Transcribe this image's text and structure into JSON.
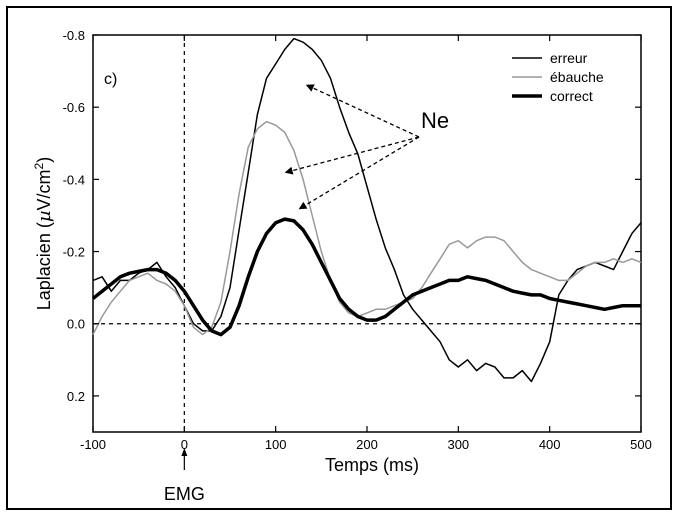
{
  "chart_data": {
    "type": "line",
    "panel_label": "c)",
    "xlabel": "Temps (ms)",
    "ylabel_main": "Laplacien (",
    "ylabel_mu": "µ",
    "ylabel_unit": "V/cm",
    "ylabel_sup": "2",
    "ylabel_close": ")",
    "xlim": [
      -100,
      500
    ],
    "ylim": [
      0.3,
      -0.8
    ],
    "y_inverted": true,
    "x_ticks": [
      -100,
      0,
      100,
      200,
      300,
      400,
      500
    ],
    "x_tick_labels": [
      "-100",
      "0",
      "100",
      "200",
      "300",
      "400",
      "500"
    ],
    "y_ticks": [
      -0.8,
      -0.6,
      -0.4,
      -0.2,
      0.0,
      0.2
    ],
    "y_tick_labels": [
      "-0.8",
      "-0.6",
      "-0.4",
      "-0.2",
      "0.0",
      "0.2"
    ],
    "grid": false,
    "legend_position": "top-right",
    "annotations": {
      "ne_label": "Ne",
      "emg_label": "EMG"
    },
    "series": [
      {
        "name": "erreur",
        "color": "#000000",
        "width": "thin",
        "x": [
          -100,
          -90,
          -80,
          -70,
          -60,
          -50,
          -40,
          -30,
          -20,
          -10,
          0,
          10,
          20,
          30,
          40,
          50,
          60,
          70,
          80,
          90,
          100,
          110,
          120,
          130,
          140,
          150,
          160,
          170,
          180,
          190,
          200,
          210,
          220,
          230,
          240,
          250,
          260,
          270,
          280,
          290,
          300,
          310,
          320,
          330,
          340,
          350,
          360,
          370,
          380,
          390,
          400,
          410,
          420,
          430,
          440,
          450,
          460,
          470,
          480,
          490,
          500
        ],
        "y": [
          -0.12,
          -0.13,
          -0.09,
          -0.12,
          -0.12,
          -0.14,
          -0.15,
          -0.17,
          -0.13,
          -0.1,
          -0.05,
          0.0,
          0.02,
          0.02,
          -0.02,
          -0.1,
          -0.26,
          -0.42,
          -0.58,
          -0.68,
          -0.72,
          -0.76,
          -0.79,
          -0.78,
          -0.76,
          -0.73,
          -0.68,
          -0.6,
          -0.53,
          -0.47,
          -0.38,
          -0.29,
          -0.21,
          -0.15,
          -0.08,
          -0.04,
          -0.01,
          0.02,
          0.05,
          0.1,
          0.12,
          0.1,
          0.13,
          0.11,
          0.12,
          0.15,
          0.15,
          0.13,
          0.16,
          0.11,
          0.05,
          -0.08,
          -0.12,
          -0.15,
          -0.16,
          -0.17,
          -0.16,
          -0.15,
          -0.2,
          -0.25,
          -0.28
        ]
      },
      {
        "name": "ébauche",
        "color": "#999999",
        "width": "thin",
        "x": [
          -100,
          -90,
          -80,
          -70,
          -60,
          -50,
          -40,
          -30,
          -20,
          -10,
          0,
          10,
          20,
          30,
          40,
          50,
          60,
          70,
          80,
          90,
          100,
          110,
          120,
          130,
          140,
          150,
          160,
          170,
          180,
          190,
          200,
          210,
          220,
          230,
          240,
          250,
          260,
          270,
          280,
          290,
          300,
          310,
          320,
          330,
          340,
          350,
          360,
          370,
          380,
          390,
          400,
          410,
          420,
          430,
          440,
          450,
          460,
          470,
          480,
          490,
          500
        ],
        "y": [
          0.03,
          -0.02,
          -0.06,
          -0.09,
          -0.12,
          -0.13,
          -0.14,
          -0.12,
          -0.11,
          -0.09,
          -0.05,
          0.01,
          0.03,
          0.01,
          -0.06,
          -0.2,
          -0.36,
          -0.49,
          -0.54,
          -0.56,
          -0.55,
          -0.53,
          -0.48,
          -0.4,
          -0.3,
          -0.2,
          -0.12,
          -0.06,
          -0.03,
          -0.02,
          -0.03,
          -0.04,
          -0.04,
          -0.05,
          -0.06,
          -0.07,
          -0.1,
          -0.14,
          -0.18,
          -0.22,
          -0.23,
          -0.21,
          -0.23,
          -0.24,
          -0.24,
          -0.23,
          -0.2,
          -0.17,
          -0.15,
          -0.14,
          -0.13,
          -0.12,
          -0.12,
          -0.14,
          -0.16,
          -0.17,
          -0.17,
          -0.18,
          -0.17,
          -0.18,
          -0.17
        ]
      },
      {
        "name": "correct",
        "color": "#000000",
        "width": "thick",
        "x": [
          -100,
          -90,
          -80,
          -70,
          -60,
          -50,
          -40,
          -30,
          -20,
          -10,
          0,
          10,
          20,
          30,
          40,
          50,
          60,
          70,
          80,
          90,
          100,
          110,
          120,
          130,
          140,
          150,
          160,
          170,
          180,
          190,
          200,
          210,
          220,
          230,
          240,
          250,
          260,
          270,
          280,
          290,
          300,
          310,
          320,
          330,
          340,
          350,
          360,
          370,
          380,
          390,
          400,
          410,
          420,
          430,
          440,
          450,
          460,
          470,
          480,
          490,
          500
        ],
        "y": [
          -0.07,
          -0.09,
          -0.11,
          -0.13,
          -0.14,
          -0.145,
          -0.15,
          -0.15,
          -0.14,
          -0.12,
          -0.09,
          -0.05,
          -0.01,
          0.02,
          0.03,
          0.01,
          -0.05,
          -0.13,
          -0.2,
          -0.25,
          -0.28,
          -0.29,
          -0.285,
          -0.26,
          -0.22,
          -0.17,
          -0.12,
          -0.07,
          -0.04,
          -0.02,
          -0.01,
          -0.01,
          -0.02,
          -0.04,
          -0.06,
          -0.08,
          -0.09,
          -0.1,
          -0.11,
          -0.12,
          -0.12,
          -0.13,
          -0.125,
          -0.12,
          -0.11,
          -0.1,
          -0.09,
          -0.085,
          -0.08,
          -0.08,
          -0.07,
          -0.065,
          -0.06,
          -0.055,
          -0.05,
          -0.045,
          -0.04,
          -0.045,
          -0.05,
          -0.05,
          -0.05
        ]
      }
    ]
  }
}
